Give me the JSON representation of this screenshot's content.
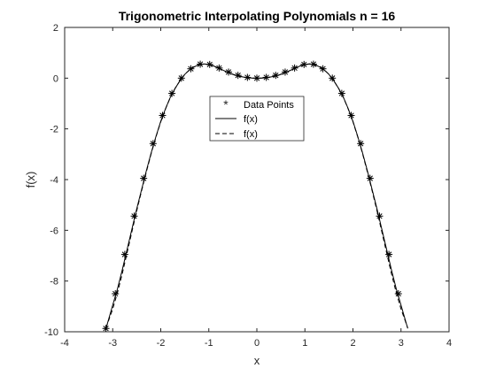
{
  "chart_data": {
    "type": "line",
    "title": "Trigonometric Interpolating Polynomials n = 16",
    "xlabel": "x",
    "ylabel": "f(x)",
    "xlim": [
      -4,
      4
    ],
    "ylim": [
      -10,
      2
    ],
    "xticks": [
      "-4",
      "-3",
      "-2",
      "-1",
      "0",
      "1",
      "2",
      "3",
      "4"
    ],
    "yticks": [
      "-10",
      "-8",
      "-6",
      "-4",
      "-2",
      "0",
      "2"
    ],
    "grid": false,
    "legend_placement": "center",
    "colors": {
      "line": "#000000",
      "axes": "#262626"
    },
    "series": [
      {
        "name": "Data Points",
        "style": "asterisk-markers",
        "x": [
          -3.1416,
          -2.9452,
          -2.7489,
          -2.5525,
          -2.3562,
          -2.1598,
          -1.9635,
          -1.7671,
          -1.5708,
          -1.3744,
          -1.1781,
          -0.9817,
          -0.7854,
          -0.589,
          -0.3927,
          -0.1963,
          0.0,
          0.1963,
          0.3927,
          0.589,
          0.7854,
          0.9817,
          1.1781,
          1.3744,
          1.5708,
          1.7671,
          1.9635,
          2.1598,
          2.3562,
          2.5525,
          2.7489,
          2.9452
        ],
        "y": [
          -9.87,
          -8.5,
          -6.95,
          -5.44,
          -3.95,
          -2.58,
          -1.47,
          -0.6,
          0.0,
          0.37,
          0.55,
          0.54,
          0.4,
          0.24,
          0.11,
          0.03,
          0.0,
          0.03,
          0.11,
          0.24,
          0.4,
          0.54,
          0.55,
          0.37,
          0.0,
          -0.6,
          -1.47,
          -2.58,
          -3.95,
          -5.44,
          -6.95,
          -8.5
        ]
      },
      {
        "name": "f(x)",
        "style": "solid",
        "x": [
          -3.14,
          -3.0,
          -2.9,
          -2.8,
          -2.7,
          -2.6,
          -2.5,
          -2.4,
          -2.3,
          -2.2,
          -2.1,
          -2.0,
          -1.9,
          -1.8,
          -1.7,
          -1.6,
          -1.5,
          -1.4,
          -1.3,
          -1.2,
          -1.1,
          -1.0,
          -0.9,
          -0.8,
          -0.7,
          -0.6,
          -0.5,
          -0.4,
          -0.3,
          -0.2,
          -0.1,
          0.0,
          0.1,
          0.2,
          0.3,
          0.4,
          0.5,
          0.6,
          0.7,
          0.8,
          0.9,
          1.0,
          1.1,
          1.2,
          1.3,
          1.4,
          1.5,
          1.6,
          1.7,
          1.8,
          1.9,
          2.0,
          2.1,
          2.2,
          2.3,
          2.4,
          2.5,
          2.6,
          2.7,
          2.8,
          2.9,
          3.0,
          3.14
        ],
        "y": [
          -9.87,
          -8.95,
          -8.3,
          -7.55,
          -6.75,
          -5.95,
          -5.15,
          -4.4,
          -3.65,
          -2.95,
          -2.3,
          -1.7,
          -1.2,
          -0.75,
          -0.4,
          -0.1,
          0.15,
          0.33,
          0.45,
          0.53,
          0.56,
          0.54,
          0.48,
          0.4,
          0.31,
          0.22,
          0.15,
          0.09,
          0.05,
          0.02,
          0.005,
          0.0,
          0.005,
          0.02,
          0.05,
          0.09,
          0.15,
          0.22,
          0.31,
          0.4,
          0.48,
          0.54,
          0.56,
          0.53,
          0.45,
          0.33,
          0.15,
          -0.1,
          -0.4,
          -0.75,
          -1.2,
          -1.7,
          -2.3,
          -2.95,
          -3.65,
          -4.4,
          -5.15,
          -5.95,
          -6.75,
          -7.55,
          -8.3,
          -8.95,
          -9.87
        ]
      },
      {
        "name": "f(x)",
        "style": "dashed",
        "x": [
          -3.14,
          -3.0,
          -2.9,
          -2.8,
          -2.7,
          -2.6,
          -2.5,
          -2.4,
          -2.3,
          -2.2,
          -2.1,
          -2.0,
          -1.9,
          -1.8,
          -1.7,
          -1.6,
          -1.5,
          -1.4,
          -1.3,
          -1.2,
          -1.1,
          -1.0,
          -0.9,
          -0.8,
          -0.7,
          -0.6,
          -0.5,
          -0.4,
          -0.3,
          -0.2,
          -0.1,
          0.0,
          0.1,
          0.2,
          0.3,
          0.4,
          0.5,
          0.6,
          0.7,
          0.8,
          0.9,
          1.0,
          1.1,
          1.2,
          1.3,
          1.4,
          1.5,
          1.6,
          1.7,
          1.8,
          1.9,
          2.0,
          2.1,
          2.2,
          2.3,
          2.4,
          2.5,
          2.6,
          2.7,
          2.8,
          2.9,
          3.0,
          3.14
        ],
        "y": [
          -9.85,
          -9.1,
          -8.45,
          -7.7,
          -6.88,
          -6.05,
          -5.23,
          -4.45,
          -3.7,
          -2.98,
          -2.32,
          -1.72,
          -1.21,
          -0.76,
          -0.4,
          -0.1,
          0.15,
          0.33,
          0.45,
          0.53,
          0.56,
          0.54,
          0.48,
          0.4,
          0.31,
          0.22,
          0.15,
          0.09,
          0.05,
          0.02,
          0.005,
          0.0,
          0.005,
          0.02,
          0.05,
          0.09,
          0.15,
          0.22,
          0.31,
          0.4,
          0.48,
          0.54,
          0.56,
          0.53,
          0.45,
          0.33,
          0.15,
          -0.1,
          -0.4,
          -0.76,
          -1.21,
          -1.72,
          -2.32,
          -2.98,
          -3.7,
          -4.45,
          -5.23,
          -6.05,
          -6.88,
          -7.7,
          -8.45,
          -9.1,
          -9.85
        ]
      }
    ]
  }
}
